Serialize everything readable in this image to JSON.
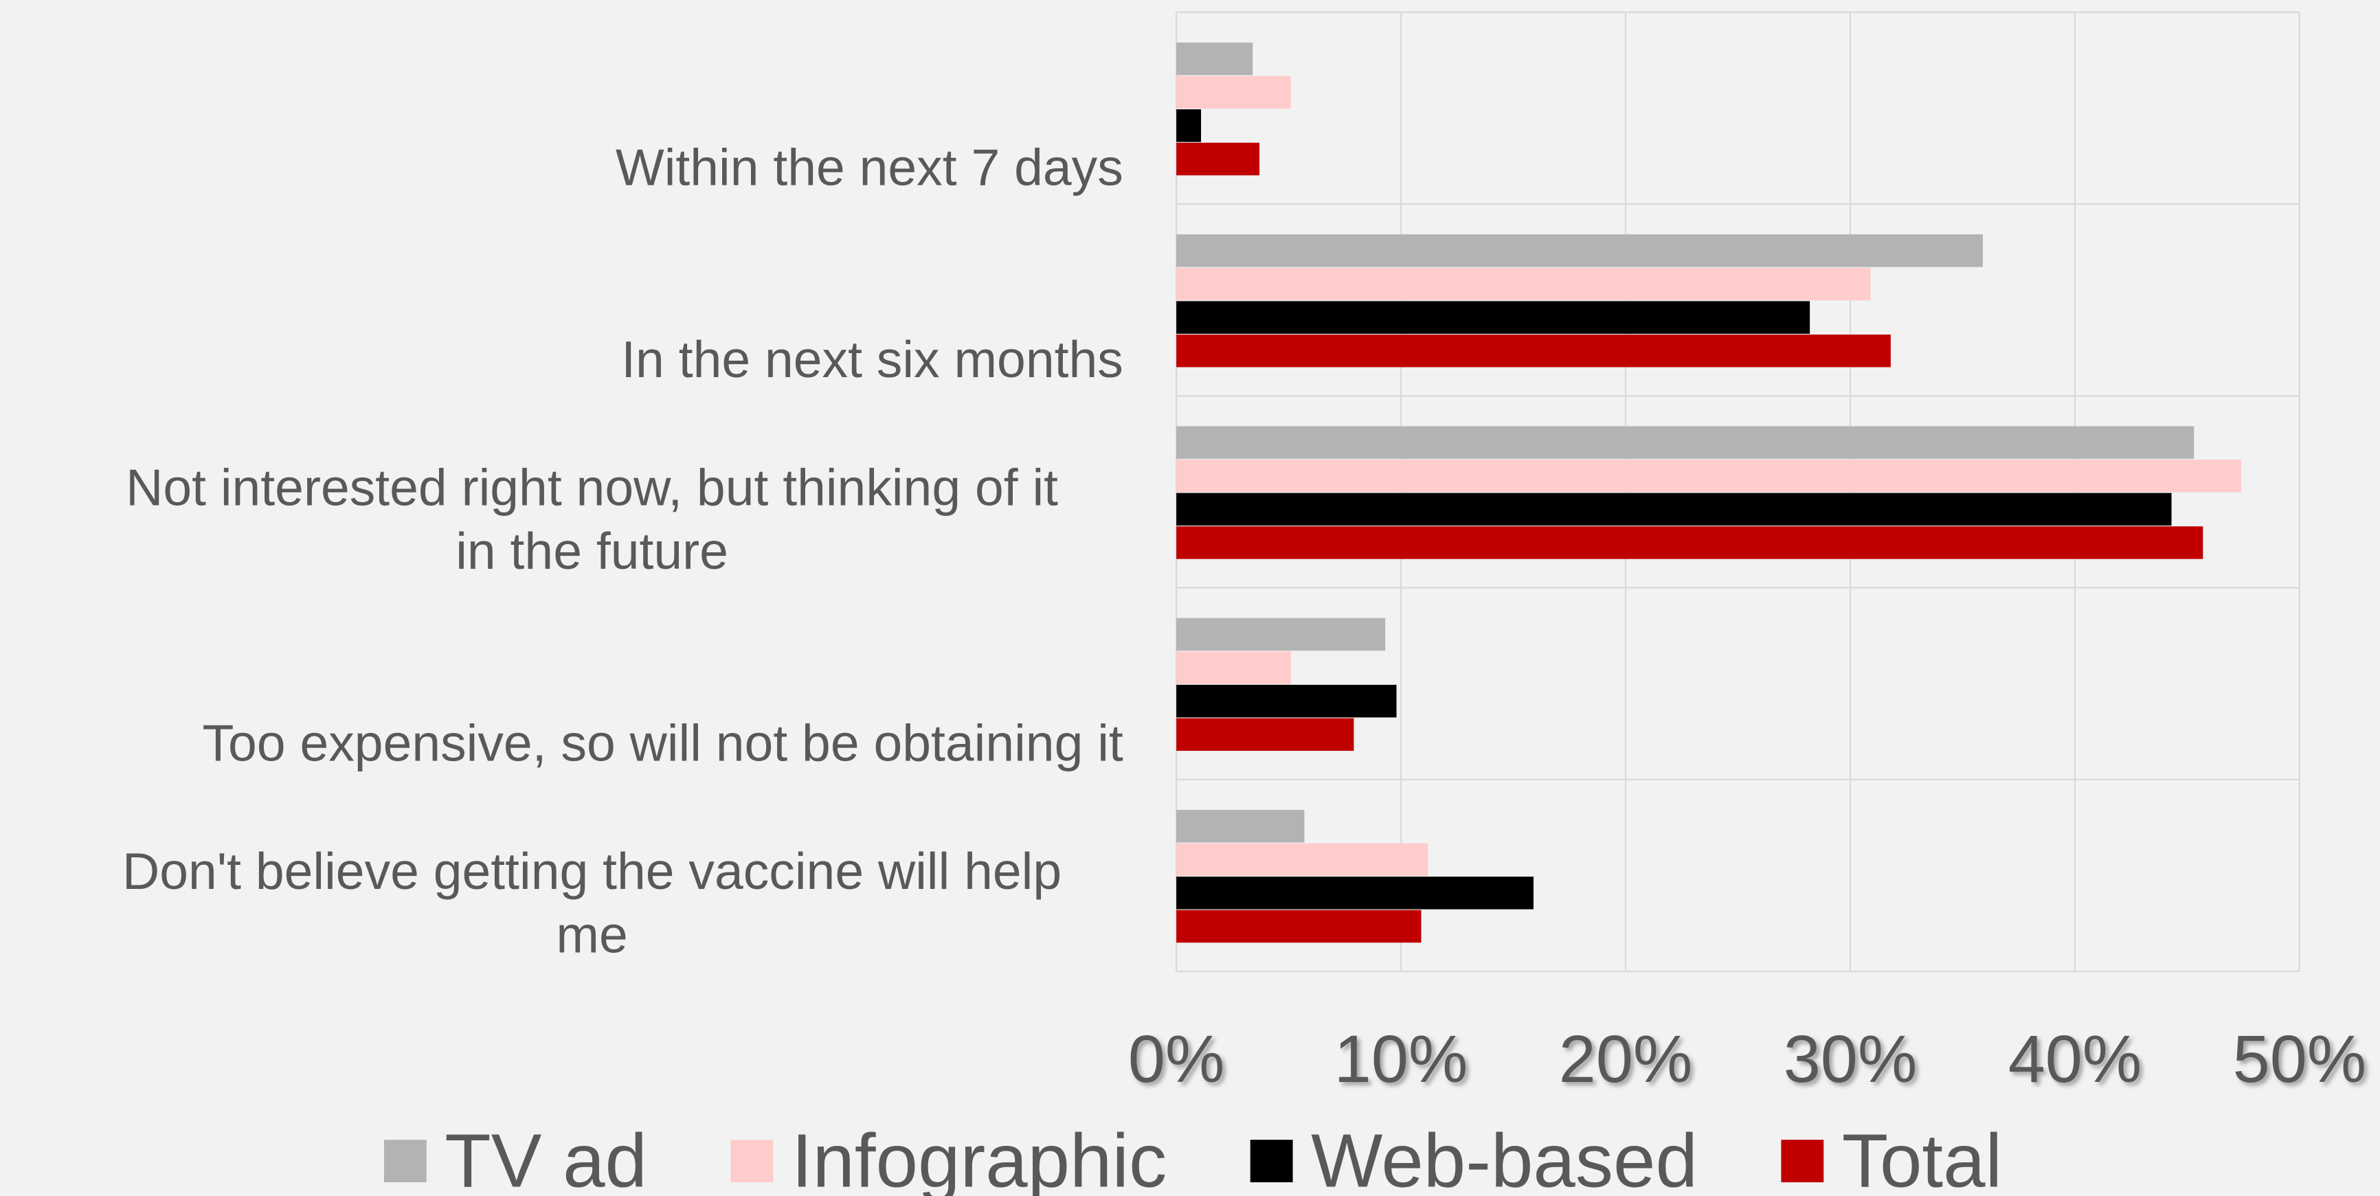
{
  "chart_data": {
    "type": "hbar",
    "categories": [
      "Within the next 7 days",
      "In the next six months",
      "Not interested right now, but thinking of it in the future",
      "Too expensive, so will not be obtaining it",
      "Don't believe getting the vaccine will help me"
    ],
    "series": [
      {
        "name": "TV ad",
        "color": "#b3b3b3",
        "values": [
          3.4,
          35.9,
          45.3,
          9.3,
          5.7
        ]
      },
      {
        "name": "Infographic",
        "color": "#ffcccc",
        "values": [
          5.1,
          30.9,
          47.4,
          5.1,
          11.2
        ]
      },
      {
        "name": "Web-based",
        "color": "#000000",
        "values": [
          1.1,
          28.2,
          44.3,
          9.8,
          15.9
        ]
      },
      {
        "name": "Total",
        "color": "#c00000",
        "values": [
          3.7,
          31.8,
          45.7,
          7.9,
          10.9
        ]
      }
    ],
    "xlim": [
      0,
      50
    ],
    "xticks": [
      {
        "value": 0,
        "label": "0%"
      },
      {
        "value": 10,
        "label": "10%"
      },
      {
        "value": 20,
        "label": "20%"
      },
      {
        "value": 30,
        "label": "30%"
      },
      {
        "value": 40,
        "label": "40%"
      },
      {
        "value": 50,
        "label": "50%"
      }
    ],
    "grid": true,
    "legend": "bottom"
  }
}
